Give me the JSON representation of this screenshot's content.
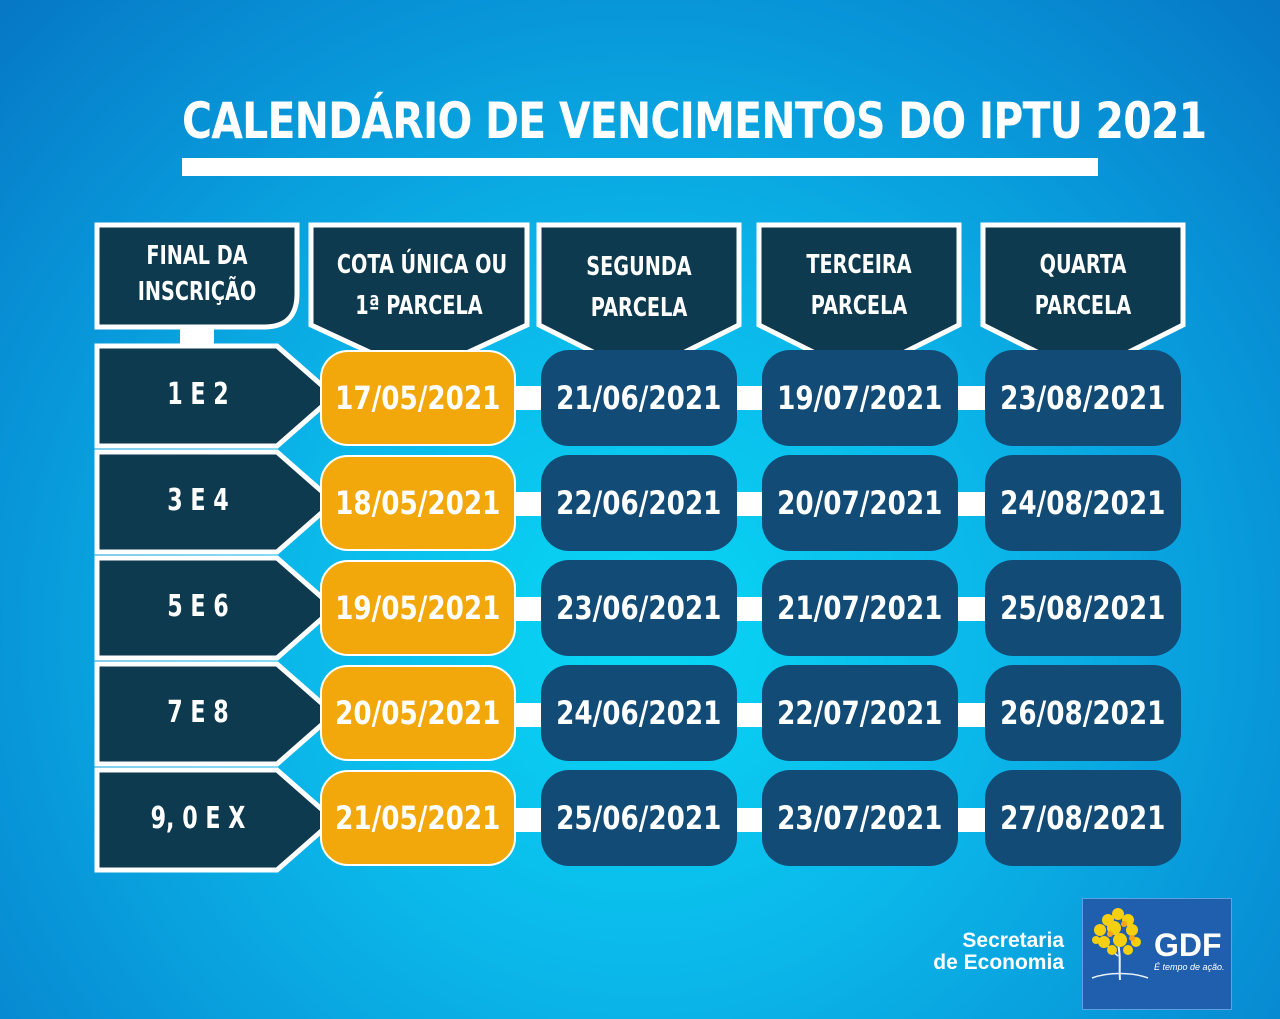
{
  "title": "CALENDÁRIO DE VENCIMENTOS DO IPTU 2021",
  "headers": {
    "final": [
      "FINAL DA",
      "INSCRIÇÃO"
    ],
    "columns": [
      [
        "COTA ÚNICA OU",
        "1ª PARCELA"
      ],
      [
        "SEGUNDA",
        "PARCELA"
      ],
      [
        "TERCEIRA",
        "PARCELA"
      ],
      [
        "QUARTA",
        "PARCELA"
      ]
    ]
  },
  "rows": [
    {
      "label": "1 E 2",
      "dates": [
        "17/05/2021",
        "21/06/2021",
        "19/07/2021",
        "23/08/2021"
      ]
    },
    {
      "label": "3 E 4",
      "dates": [
        "18/05/2021",
        "22/06/2021",
        "20/07/2021",
        "24/08/2021"
      ]
    },
    {
      "label": "5 E 6",
      "dates": [
        "19/05/2021",
        "23/06/2021",
        "21/07/2021",
        "25/08/2021"
      ]
    },
    {
      "label": "7 E 8",
      "dates": [
        "20/05/2021",
        "24/06/2021",
        "22/07/2021",
        "26/08/2021"
      ]
    },
    {
      "label": "9, 0 E X",
      "dates": [
        "21/05/2021",
        "25/06/2021",
        "23/07/2021",
        "27/08/2021"
      ]
    }
  ],
  "footer": {
    "secretaria": [
      "Secretaria",
      "de Economia"
    ],
    "logo_text": "GDF",
    "logo_tagline": "É tempo de ação."
  },
  "colors": {
    "first_installment": "#f2a80b",
    "installment": "#124c76",
    "header_dark": "#0d3a4e",
    "text": "#ffffff"
  }
}
